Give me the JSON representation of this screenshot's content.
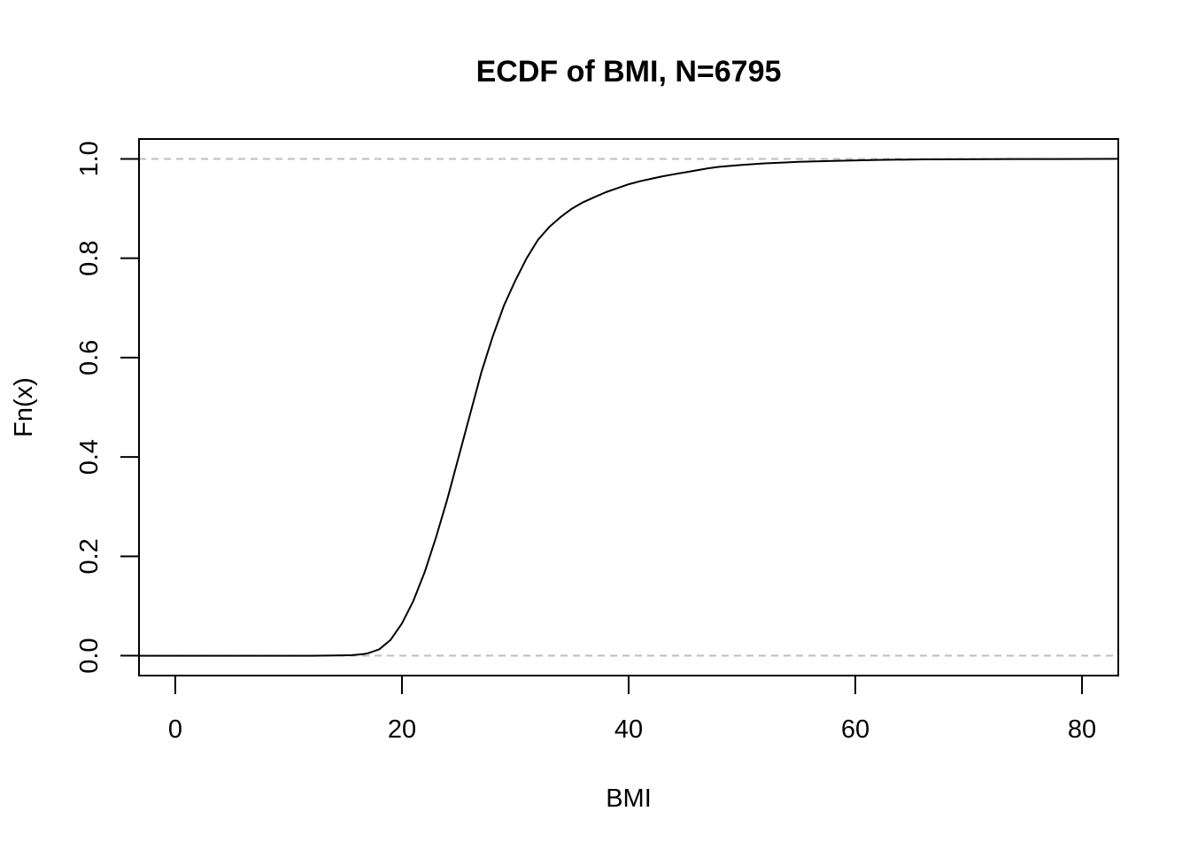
{
  "chart_data": {
    "type": "line",
    "title": "ECDF of BMI, N=6795",
    "xlabel": "BMI",
    "ylabel": "Fn(x)",
    "xlim": [
      -3.2,
      83.2
    ],
    "ylim": [
      -0.04,
      1.04
    ],
    "x_ticks": [
      0,
      20,
      40,
      60,
      80
    ],
    "x_tick_labels": [
      "0",
      "20",
      "40",
      "60",
      "80"
    ],
    "y_ticks": [
      0,
      0.2,
      0.4,
      0.6,
      0.8,
      1.0
    ],
    "y_tick_labels": [
      "0.0",
      "0.2",
      "0.4",
      "0.6",
      "0.8",
      "1.0"
    ],
    "reference_lines": [
      {
        "y": 0,
        "style": "dashed",
        "color": "#bebebe"
      },
      {
        "y": 1,
        "style": "dashed",
        "color": "#bebebe"
      }
    ],
    "series": [
      {
        "x": [
          -3.2,
          12.0,
          15.5,
          16.5,
          17.0,
          18.0,
          19.0,
          20.0,
          21.0,
          22.0,
          23.0,
          24.0,
          25.0,
          26.0,
          27.0,
          28.0,
          29.0,
          30.0,
          31.0,
          32.0,
          33.0,
          34.0,
          35.0,
          36.0,
          37.0,
          38.0,
          39.0,
          40.0,
          41.0,
          42.0,
          43.0,
          44.0,
          45.0,
          46.0,
          47.0,
          48.0,
          50.0,
          52.0,
          55.0,
          58.0,
          62.0,
          66.0,
          72.0,
          78.0,
          83.2
        ],
        "y": [
          0.0,
          0.0,
          0.001,
          0.003,
          0.005,
          0.013,
          0.032,
          0.065,
          0.11,
          0.168,
          0.238,
          0.315,
          0.4,
          0.485,
          0.57,
          0.642,
          0.705,
          0.755,
          0.8,
          0.837,
          0.863,
          0.883,
          0.9,
          0.913,
          0.923,
          0.933,
          0.941,
          0.949,
          0.955,
          0.96,
          0.965,
          0.969,
          0.973,
          0.977,
          0.981,
          0.984,
          0.988,
          0.991,
          0.994,
          0.996,
          0.998,
          0.999,
          0.9995,
          0.9998,
          1.0
        ],
        "color": "#000000"
      }
    ]
  }
}
